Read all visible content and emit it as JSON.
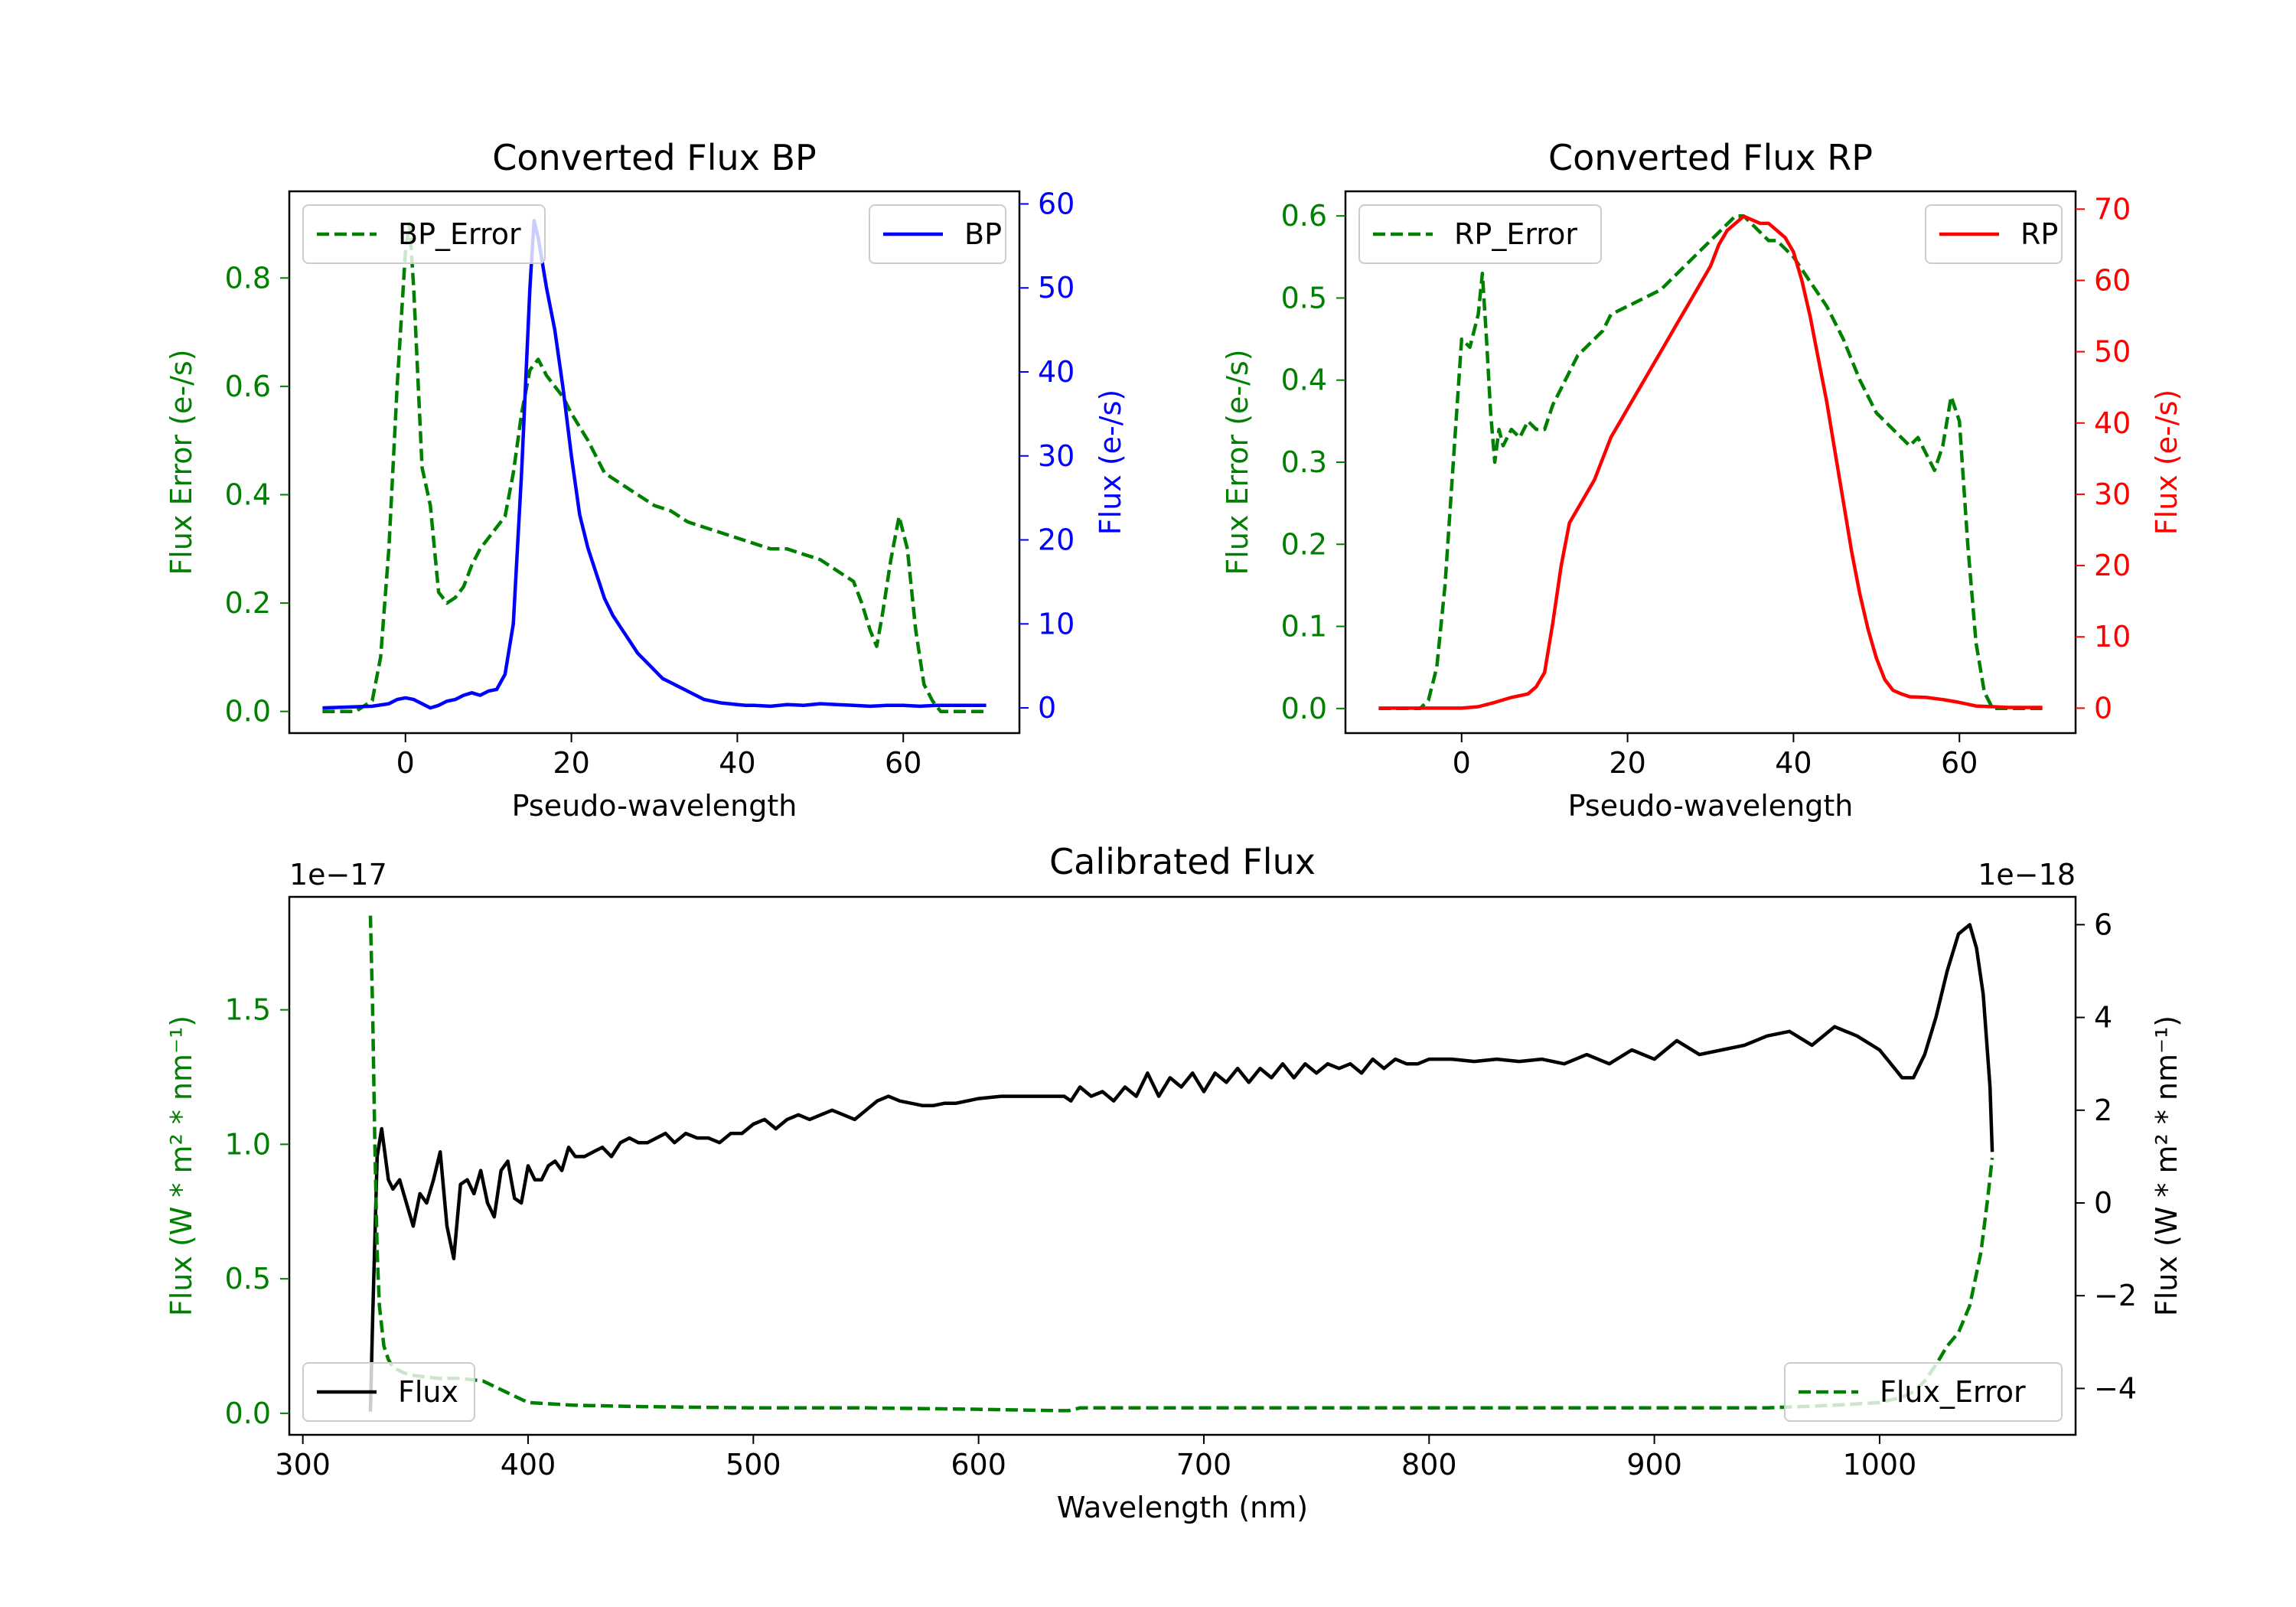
{
  "chart_data": [
    {
      "type": "line",
      "title": "Converted Flux BP",
      "xlabel": "Pseudo-wavelength",
      "xlim": [
        -14,
        74
      ],
      "xticks": [
        0,
        20,
        40,
        60
      ],
      "xtick_labels": [
        "0",
        "20",
        "40",
        "60"
      ],
      "left_axis": {
        "ylabel": "Flux Error (e-/s)",
        "color": "#008000",
        "ylim": [
          -0.04,
          0.96
        ],
        "ticks": [
          0.0,
          0.2,
          0.4,
          0.6,
          0.8
        ],
        "tick_labels": [
          "0.0",
          "0.2",
          "0.4",
          "0.6",
          "0.8"
        ]
      },
      "right_axis": {
        "ylabel": "Flux (e-/s)",
        "color": "#0000ff",
        "ylim": [
          -3,
          61.5
        ],
        "ticks": [
          0,
          10,
          20,
          30,
          40,
          50,
          60
        ],
        "tick_labels": [
          "0",
          "10",
          "20",
          "30",
          "40",
          "50",
          "60"
        ]
      },
      "series": [
        {
          "name": "BP_Error",
          "axis": "left",
          "color": "#008000",
          "style": "dashed",
          "x": [
            -10,
            -6,
            -4,
            -3,
            -2,
            -1,
            0,
            0.5,
            1,
            2,
            3,
            3.5,
            4,
            5,
            6,
            7,
            8,
            9,
            10,
            12,
            13,
            14,
            15,
            16,
            17,
            18,
            19,
            20,
            22,
            24,
            26,
            28,
            30,
            32,
            34,
            36,
            38,
            40,
            42,
            44,
            46,
            48,
            50,
            52,
            54,
            55,
            56,
            56.8,
            57.5,
            58.5,
            59.5,
            60.5,
            61.5,
            62.5,
            63.5,
            64.5,
            66,
            70
          ],
          "y": [
            0.0,
            0.0,
            0.02,
            0.1,
            0.3,
            0.6,
            0.85,
            0.9,
            0.78,
            0.45,
            0.38,
            0.3,
            0.22,
            0.2,
            0.21,
            0.23,
            0.27,
            0.3,
            0.32,
            0.36,
            0.44,
            0.55,
            0.63,
            0.65,
            0.62,
            0.6,
            0.58,
            0.55,
            0.5,
            0.44,
            0.42,
            0.4,
            0.38,
            0.37,
            0.35,
            0.34,
            0.33,
            0.32,
            0.31,
            0.3,
            0.3,
            0.29,
            0.28,
            0.26,
            0.24,
            0.2,
            0.15,
            0.12,
            0.18,
            0.28,
            0.36,
            0.3,
            0.15,
            0.05,
            0.02,
            0.0,
            0.0,
            0.0
          ]
        },
        {
          "name": "BP",
          "axis": "right",
          "color": "#0000ff",
          "style": "solid",
          "x": [
            -10,
            -4,
            -2,
            -1,
            0,
            1,
            2,
            3,
            4,
            5,
            6,
            7,
            8,
            9,
            10,
            11,
            12,
            13,
            14,
            15,
            15.5,
            16,
            17,
            18,
            19,
            20,
            21,
            22,
            23,
            24,
            25,
            26,
            27,
            28,
            29,
            30,
            31,
            32,
            33,
            34,
            35,
            36,
            37,
            38,
            39,
            40,
            41,
            42,
            44,
            46,
            48,
            50,
            52,
            54,
            56,
            58,
            60,
            62,
            64,
            66,
            70
          ],
          "y": [
            0,
            0.2,
            0.5,
            1.0,
            1.2,
            1.0,
            0.5,
            0.0,
            0.3,
            0.8,
            1.0,
            1.5,
            1.8,
            1.5,
            2.0,
            2.2,
            4.0,
            10,
            28,
            50,
            58,
            56,
            50,
            45,
            38,
            30,
            23,
            19,
            16,
            13,
            11,
            9.5,
            8,
            6.5,
            5.5,
            4.5,
            3.5,
            3.0,
            2.5,
            2.0,
            1.5,
            1.0,
            0.8,
            0.6,
            0.5,
            0.4,
            0.3,
            0.3,
            0.2,
            0.4,
            0.3,
            0.5,
            0.4,
            0.3,
            0.2,
            0.3,
            0.3,
            0.2,
            0.3,
            0.3,
            0.3
          ]
        }
      ],
      "legends": [
        {
          "label": "BP_Error",
          "placement": "upper-left"
        },
        {
          "label": "BP",
          "placement": "upper-right"
        }
      ]
    },
    {
      "type": "line",
      "title": "Converted Flux RP",
      "xlabel": "Pseudo-wavelength",
      "xlim": [
        -14,
        74
      ],
      "xticks": [
        0,
        20,
        40,
        60
      ],
      "xtick_labels": [
        "0",
        "20",
        "40",
        "60"
      ],
      "left_axis": {
        "ylabel": "Flux Error (e-/s)",
        "color": "#008000",
        "ylim": [
          -0.03,
          0.63
        ],
        "ticks": [
          0.0,
          0.1,
          0.2,
          0.3,
          0.4,
          0.5,
          0.6
        ],
        "tick_labels": [
          "0.0",
          "0.1",
          "0.2",
          "0.3",
          "0.4",
          "0.5",
          "0.6"
        ]
      },
      "right_axis": {
        "ylabel": "Flux (e-/s)",
        "color": "#ff0000",
        "ylim": [
          -3.5,
          72.5
        ],
        "ticks": [
          0,
          10,
          20,
          30,
          40,
          50,
          60,
          70
        ],
        "tick_labels": [
          "0",
          "10",
          "20",
          "30",
          "40",
          "50",
          "60",
          "70"
        ]
      },
      "series": [
        {
          "name": "RP_Error",
          "axis": "left",
          "color": "#008000",
          "style": "dashed",
          "x": [
            -10,
            -5,
            -4,
            -3,
            -2,
            -1,
            0,
            1,
            2,
            2.5,
            3,
            3.5,
            4,
            4.5,
            5,
            6,
            7,
            8,
            9,
            10,
            11,
            12,
            13,
            14,
            15,
            16,
            17,
            18,
            20,
            22,
            24,
            26,
            28,
            30,
            32,
            33,
            34,
            35,
            36,
            37,
            38,
            40,
            42,
            44,
            46,
            48,
            50,
            52,
            54,
            55,
            56,
            57,
            58,
            59,
            60,
            61,
            62,
            63,
            64,
            66,
            70
          ],
          "y": [
            0.0,
            0.0,
            0.01,
            0.05,
            0.15,
            0.3,
            0.45,
            0.44,
            0.48,
            0.53,
            0.45,
            0.36,
            0.3,
            0.34,
            0.32,
            0.34,
            0.33,
            0.35,
            0.34,
            0.34,
            0.37,
            0.39,
            0.41,
            0.43,
            0.44,
            0.45,
            0.46,
            0.48,
            0.49,
            0.5,
            0.51,
            0.53,
            0.55,
            0.57,
            0.59,
            0.6,
            0.6,
            0.59,
            0.58,
            0.57,
            0.57,
            0.55,
            0.52,
            0.49,
            0.45,
            0.4,
            0.36,
            0.34,
            0.32,
            0.33,
            0.31,
            0.29,
            0.32,
            0.38,
            0.35,
            0.2,
            0.08,
            0.02,
            0.0,
            0.0,
            0.0
          ]
        },
        {
          "name": "RP",
          "axis": "right",
          "color": "#ff0000",
          "style": "solid",
          "x": [
            -10,
            -2,
            0,
            2,
            4,
            6,
            8,
            9,
            10,
            11,
            12,
            13,
            14,
            15,
            16,
            17,
            18,
            19,
            20,
            21,
            22,
            23,
            24,
            25,
            26,
            27,
            28,
            29,
            30,
            31,
            32,
            33,
            34,
            35,
            36,
            37,
            38,
            39,
            40,
            41,
            42,
            43,
            44,
            45,
            46,
            47,
            48,
            49,
            50,
            51,
            52,
            53,
            54,
            56,
            58,
            60,
            62,
            64,
            66,
            70
          ],
          "y": [
            0,
            0,
            0,
            0.2,
            0.8,
            1.5,
            2.0,
            3.0,
            5.0,
            12,
            20,
            26,
            28,
            30,
            32,
            35,
            38,
            40,
            42,
            44,
            46,
            48,
            50,
            52,
            54,
            56,
            58,
            60,
            62,
            65,
            67,
            68,
            69,
            68.5,
            68,
            68,
            67,
            66,
            64,
            60,
            55,
            49,
            43,
            36,
            29,
            22,
            16,
            11,
            7,
            4,
            2.5,
            2.0,
            1.6,
            1.5,
            1.2,
            0.8,
            0.3,
            0.2,
            0.1,
            0.1
          ]
        }
      ],
      "legends": [
        {
          "label": "RP_Error",
          "placement": "upper-left"
        },
        {
          "label": "RP",
          "placement": "upper-right"
        }
      ]
    },
    {
      "type": "line",
      "title": "Calibrated Flux",
      "xlabel": "Wavelength (nm)",
      "xlim": [
        294,
        1087
      ],
      "xticks": [
        300,
        400,
        500,
        600,
        700,
        800,
        900,
        1000
      ],
      "xtick_labels": [
        "300",
        "400",
        "500",
        "600",
        "700",
        "800",
        "900",
        "1000"
      ],
      "left_axis": {
        "ylabel": "Flux (W * m² * nm⁻¹)",
        "color": "#008000",
        "scale_label": "1e−17",
        "ylim": [
          -0.08,
          1.92
        ],
        "ticks": [
          0.0,
          0.5,
          1.0,
          1.5
        ],
        "tick_labels": [
          "0.0",
          "0.5",
          "1.0",
          "1.5"
        ]
      },
      "right_axis": {
        "ylabel": "Flux (W * m² * nm⁻¹)",
        "color": "#000000",
        "scale_label": "1e−18",
        "ylim": [
          -5.0,
          6.6
        ],
        "ticks": [
          -4,
          -2,
          0,
          2,
          4,
          6
        ],
        "tick_labels": [
          "−4",
          "−2",
          "0",
          "2",
          "4",
          "6"
        ]
      },
      "series": [
        {
          "name": "Flux",
          "axis": "right",
          "color": "#000000",
          "style": "solid",
          "x": [
            330,
            331,
            333,
            335,
            338,
            340,
            343,
            346,
            349,
            352,
            355,
            358,
            361,
            364,
            367,
            370,
            373,
            376,
            379,
            382,
            385,
            388,
            391,
            394,
            397,
            400,
            403,
            406,
            409,
            412,
            415,
            418,
            421,
            425,
            429,
            433,
            437,
            441,
            445,
            449,
            453,
            457,
            461,
            465,
            470,
            475,
            480,
            485,
            490,
            495,
            500,
            505,
            510,
            515,
            520,
            525,
            530,
            535,
            540,
            545,
            550,
            555,
            560,
            565,
            570,
            575,
            580,
            585,
            590,
            600,
            610,
            620,
            630,
            638,
            641,
            645,
            650,
            655,
            660,
            665,
            670,
            675,
            680,
            685,
            690,
            695,
            700,
            705,
            710,
            715,
            720,
            725,
            730,
            735,
            740,
            745,
            750,
            755,
            760,
            765,
            770,
            775,
            780,
            785,
            790,
            795,
            800,
            810,
            820,
            830,
            840,
            850,
            860,
            870,
            880,
            890,
            900,
            910,
            920,
            930,
            940,
            950,
            960,
            970,
            980,
            990,
            1000,
            1010,
            1015,
            1020,
            1025,
            1030,
            1035,
            1040,
            1043,
            1046,
            1049,
            1050
          ],
          "y": [
            -4.5,
            -2.5,
            1.0,
            1.6,
            0.5,
            0.3,
            0.5,
            0.0,
            -0.5,
            0.2,
            0.0,
            0.5,
            1.1,
            -0.5,
            -1.2,
            0.4,
            0.5,
            0.2,
            0.7,
            0.0,
            -0.3,
            0.7,
            0.9,
            0.1,
            0.0,
            0.8,
            0.5,
            0.5,
            0.8,
            0.9,
            0.7,
            1.2,
            1.0,
            1.0,
            1.1,
            1.2,
            1.0,
            1.3,
            1.4,
            1.3,
            1.3,
            1.4,
            1.5,
            1.3,
            1.5,
            1.4,
            1.4,
            1.3,
            1.5,
            1.5,
            1.7,
            1.8,
            1.6,
            1.8,
            1.9,
            1.8,
            1.9,
            2.0,
            1.9,
            1.8,
            2.0,
            2.2,
            2.3,
            2.2,
            2.15,
            2.1,
            2.1,
            2.15,
            2.15,
            2.25,
            2.3,
            2.3,
            2.3,
            2.3,
            2.2,
            2.5,
            2.3,
            2.4,
            2.2,
            2.5,
            2.3,
            2.8,
            2.3,
            2.7,
            2.5,
            2.8,
            2.4,
            2.8,
            2.6,
            2.9,
            2.6,
            2.9,
            2.7,
            3.0,
            2.7,
            3.0,
            2.8,
            3.0,
            2.9,
            3.0,
            2.8,
            3.1,
            2.9,
            3.1,
            3.0,
            3.0,
            3.1,
            3.1,
            3.05,
            3.1,
            3.05,
            3.1,
            3.0,
            3.2,
            3.0,
            3.3,
            3.1,
            3.5,
            3.2,
            3.3,
            3.4,
            3.6,
            3.7,
            3.4,
            3.8,
            3.6,
            3.3,
            2.7,
            2.7,
            3.2,
            4.0,
            5.0,
            5.8,
            6.0,
            5.5,
            4.5,
            2.5,
            1.1
          ]
        },
        {
          "name": "Flux_Error",
          "axis": "left",
          "color": "#008000",
          "style": "dashed",
          "x": [
            330,
            331,
            332,
            333,
            334,
            336,
            338,
            340,
            345,
            350,
            360,
            370,
            380,
            390,
            400,
            420,
            450,
            500,
            550,
            600,
            635,
            640,
            645,
            650,
            700,
            800,
            900,
            950,
            980,
            1000,
            1010,
            1015,
            1020,
            1025,
            1030,
            1035,
            1040,
            1045,
            1048,
            1050
          ],
          "y": [
            1.85,
            1.5,
            1.0,
            0.6,
            0.4,
            0.25,
            0.2,
            0.17,
            0.15,
            0.14,
            0.13,
            0.13,
            0.12,
            0.08,
            0.04,
            0.03,
            0.025,
            0.02,
            0.02,
            0.015,
            0.01,
            0.01,
            0.02,
            0.02,
            0.02,
            0.02,
            0.02,
            0.02,
            0.03,
            0.04,
            0.06,
            0.08,
            0.12,
            0.18,
            0.25,
            0.3,
            0.4,
            0.6,
            0.8,
            0.95
          ]
        }
      ],
      "legends": [
        {
          "label": "Flux",
          "placement": "lower-left"
        },
        {
          "label": "Flux_Error",
          "placement": "lower-right"
        }
      ]
    }
  ]
}
